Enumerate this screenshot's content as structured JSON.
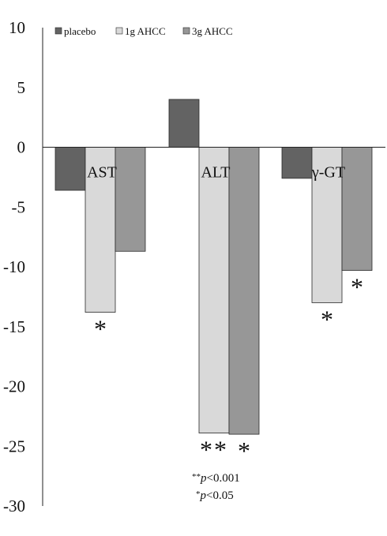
{
  "chart_data": {
    "type": "bar",
    "categories": [
      "AST",
      "ALT",
      "γ-GT"
    ],
    "series": [
      {
        "name": "placebo",
        "values": [
          -3.6,
          4.0,
          -2.6
        ],
        "color": "#636363"
      },
      {
        "name": "1g AHCC",
        "values": [
          -13.8,
          -23.9,
          -13.0
        ],
        "color": "#d9d9d9"
      },
      {
        "name": "3g AHCC",
        "values": [
          -8.7,
          -24.0,
          -10.3
        ],
        "color": "#979797"
      }
    ],
    "ylim": [
      -30,
      10
    ],
    "yticks": [
      10,
      5,
      0,
      -5,
      -10,
      -15,
      -20,
      -25,
      -30
    ],
    "grid": false,
    "legend_position": "top",
    "significance": [
      {
        "category": 0,
        "series": 1,
        "text": "*"
      },
      {
        "category": 1,
        "series": 1,
        "text": "**"
      },
      {
        "category": 1,
        "series": 2,
        "text": "*"
      },
      {
        "category": 2,
        "series": 1,
        "text": "*"
      },
      {
        "category": 2,
        "series": 2,
        "text": "*"
      }
    ],
    "footnotes": [
      {
        "stars": "**",
        "text": "p<0.001"
      },
      {
        "stars": "*",
        "text": "p<0.05"
      }
    ]
  }
}
